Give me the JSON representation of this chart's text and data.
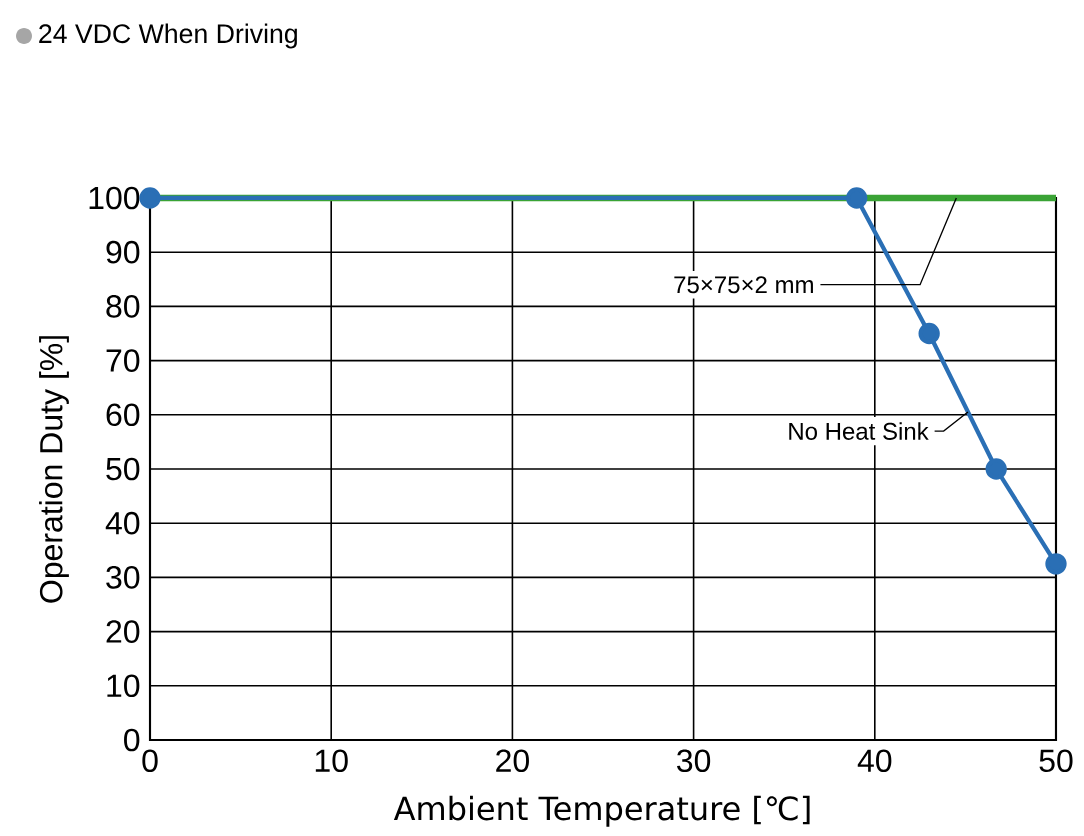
{
  "chart_data": {
    "type": "line",
    "title": "24 VDC When Driving",
    "xlabel": "Ambient Temperature [℃]",
    "ylabel": "Operation Duty  [%]",
    "xlim": [
      0,
      50
    ],
    "ylim": [
      0,
      100
    ],
    "xticks": [
      0,
      10,
      20,
      30,
      40,
      50
    ],
    "yticks": [
      0,
      10,
      20,
      30,
      40,
      50,
      60,
      70,
      80,
      90,
      100
    ],
    "grid": true,
    "legend": false,
    "series": [
      {
        "name": "75×75×2 mm",
        "color": "#3aa335",
        "x": [
          0,
          50
        ],
        "values": [
          100,
          100
        ],
        "marker": "none"
      },
      {
        "name": "No Heat Sink",
        "color": "#2a6fb5",
        "x": [
          0,
          39,
          43,
          46.7,
          50
        ],
        "values": [
          100,
          100,
          75,
          50,
          32.5
        ],
        "marker": "circle"
      }
    ]
  }
}
